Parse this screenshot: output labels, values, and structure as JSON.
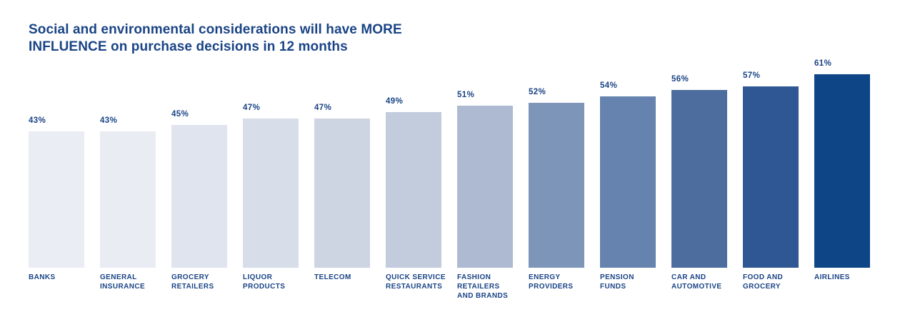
{
  "chart_data": {
    "type": "bar",
    "title": "Social and environmental considerations will have MORE INFLUENCE on purchase decisions in 12 months",
    "categories": [
      "BANKS",
      "GENERAL INSURANCE",
      "GROCERY RETAILERS",
      "LIQUOR PRODUCTS",
      "TELECOM",
      "QUICK SERVICE RESTAURANTS",
      "FASHION RETAILERS AND BRANDS",
      "ENERGY PROVIDERS",
      "PENSION FUNDS",
      "CAR AND AUTOMOTIVE",
      "FOOD AND GROCERY",
      "AIRLINES"
    ],
    "values": [
      43,
      43,
      45,
      47,
      47,
      49,
      51,
      52,
      54,
      56,
      57,
      61
    ],
    "value_labels": [
      "43%",
      "43%",
      "45%",
      "47%",
      "47%",
      "49%",
      "51%",
      "52%",
      "54%",
      "56%",
      "57%",
      "61%"
    ],
    "bar_colors": [
      "#EBEDF4",
      "#E9ECF3",
      "#DFE4EE",
      "#D7DDE9",
      "#CDD4E2",
      "#C3CCDD",
      "#AEBAD2",
      "#7E95BA",
      "#6583AE",
      "#4C6D9E",
      "#2F5793",
      "#0D4586"
    ],
    "text_color": "#1A4486",
    "xlabel": "",
    "ylabel": "",
    "ylim": [
      0,
      65
    ],
    "grid": false,
    "legend": false,
    "value_labels_position": "above-bar-left",
    "category_labels_position": "below-bar-left"
  }
}
